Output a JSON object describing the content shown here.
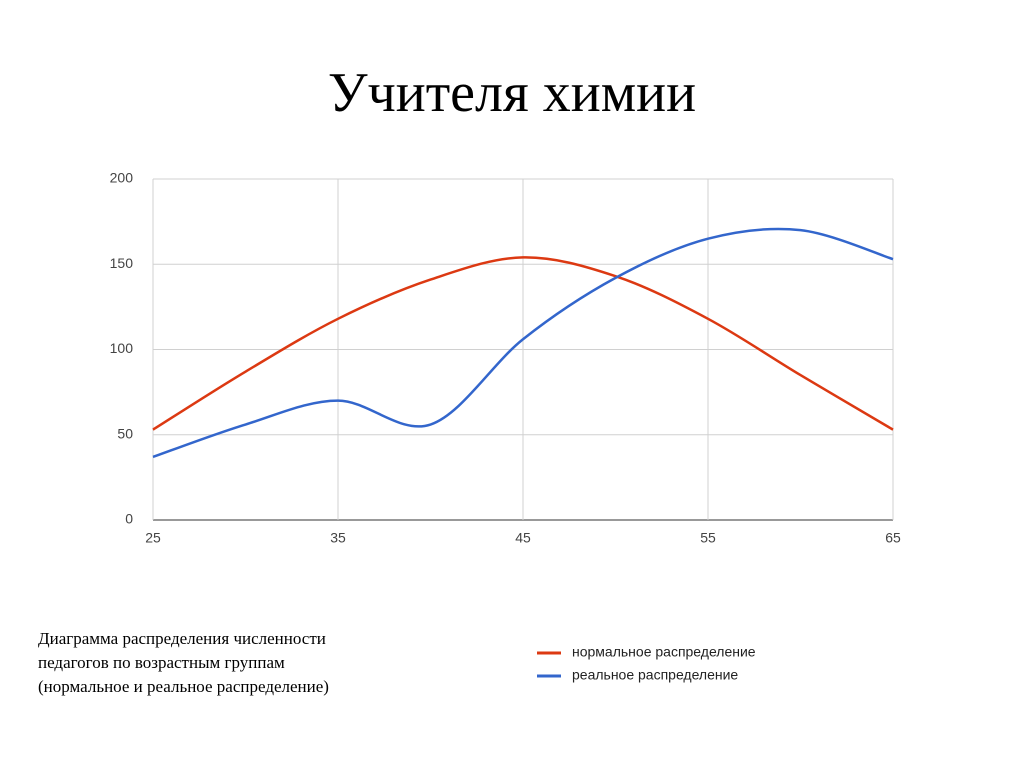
{
  "chart_data": {
    "type": "line",
    "title": "Учителя химии",
    "caption": [
      "Диаграмма распределения численности",
      "педагогов по возрастным группам",
      "(нормальное и реальное распределение)"
    ],
    "x": [
      25,
      30,
      35,
      40,
      45,
      50,
      55,
      60,
      65
    ],
    "series": [
      {
        "name": "нормальное распределение",
        "color": "#dc3912",
        "values": [
          53,
          87,
          118,
          141,
          154,
          143,
          118,
          85,
          53
        ]
      },
      {
        "name": "реальное распределение",
        "color": "#3366cc",
        "values": [
          37,
          56,
          70,
          56,
          106,
          142,
          165,
          170,
          153
        ]
      }
    ],
    "xlim": [
      25,
      65
    ],
    "xticks": [
      25,
      35,
      45,
      55,
      65
    ],
    "ylim": [
      0,
      200
    ],
    "yticks": [
      0,
      50,
      100,
      150,
      200
    ],
    "grid": true
  }
}
